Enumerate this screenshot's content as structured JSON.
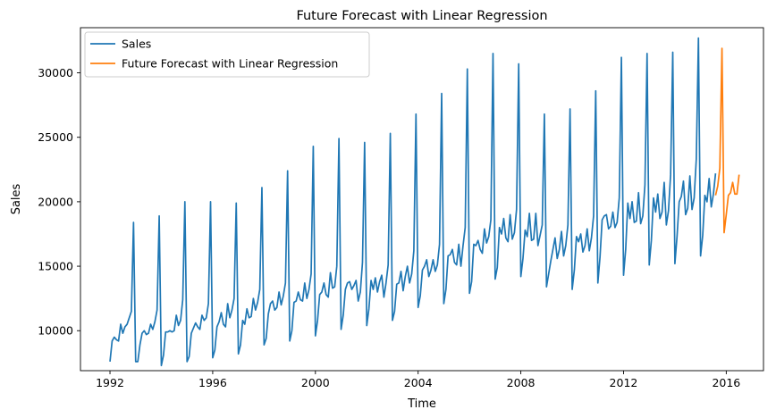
{
  "chart_data": {
    "type": "line",
    "title": "Future Forecast with Linear Regression",
    "xlabel": "Time",
    "ylabel": "Sales",
    "xlim": [
      1990.85,
      2017.45
    ],
    "ylim": [
      6900,
      33500
    ],
    "x_ticks": [
      1992,
      1996,
      2000,
      2004,
      2008,
      2012,
      2016
    ],
    "y_ticks": [
      10000,
      15000,
      20000,
      25000,
      30000
    ],
    "legend_position": "upper-left",
    "grid": false,
    "series": [
      {
        "name": "Sales",
        "color": "#1f77b4",
        "start_year": 1992,
        "values": [
          7600,
          9200,
          9500,
          9300,
          9200,
          10500,
          9800,
          10300,
          10500,
          11000,
          11500,
          18400,
          7600,
          7600,
          8900,
          9800,
          10000,
          9700,
          9800,
          10500,
          10100,
          10700,
          11600,
          18900,
          7300,
          8100,
          9900,
          9900,
          10000,
          9900,
          10000,
          11200,
          10400,
          10800,
          12400,
          20000,
          7600,
          8000,
          9800,
          10200,
          10600,
          10300,
          10100,
          11200,
          10800,
          11000,
          12100,
          20000,
          7900,
          8500,
          10300,
          10700,
          11400,
          10500,
          10300,
          12100,
          11000,
          11600,
          12500,
          19900,
          8200,
          8900,
          10800,
          10500,
          11700,
          11000,
          11100,
          12500,
          11600,
          12200,
          13200,
          21100,
          8900,
          9400,
          11300,
          12100,
          12300,
          11600,
          11800,
          13000,
          12000,
          12700,
          13700,
          22400,
          9200,
          10000,
          12200,
          12300,
          13000,
          12400,
          12300,
          13700,
          12500,
          13200,
          14400,
          24300,
          9600,
          10800,
          12800,
          13000,
          13700,
          12800,
          12600,
          14500,
          13300,
          13400,
          15000,
          24900,
          10100,
          11200,
          13200,
          13700,
          13800,
          13200,
          13500,
          13900,
          12300,
          13000,
          15300,
          24600,
          10400,
          11700,
          13900,
          13200,
          14100,
          13000,
          13800,
          14300,
          12600,
          13700,
          15100,
          25300,
          10800,
          11500,
          13600,
          13700,
          14600,
          13100,
          14200,
          15000,
          13700,
          14400,
          16200,
          26800,
          11800,
          12700,
          14700,
          15000,
          15500,
          14200,
          14700,
          15500,
          14600,
          15100,
          16700,
          28400,
          12100,
          13200,
          15800,
          15900,
          16300,
          15300,
          15100,
          16700,
          15000,
          16600,
          18000,
          30300,
          12900,
          13800,
          16700,
          16600,
          17000,
          16300,
          16000,
          17900,
          16800,
          17300,
          18600,
          31500,
          14000,
          14900,
          18000,
          17500,
          18700,
          17200,
          16900,
          19000,
          17100,
          17600,
          19400,
          30700,
          14200,
          15600,
          17800,
          17300,
          19100,
          17000,
          17100,
          19100,
          16600,
          17400,
          18200,
          26800,
          13400,
          14400,
          15400,
          16300,
          17200,
          15600,
          16300,
          17700,
          15800,
          16600,
          18200,
          27200,
          13200,
          14700,
          17300,
          16900,
          17500,
          16100,
          16600,
          17900,
          16200,
          17200,
          18900,
          28600,
          13700,
          15700,
          18600,
          18900,
          19000,
          17900,
          18100,
          19200,
          18000,
          18400,
          20300,
          31200,
          14300,
          16300,
          19900,
          18700,
          20000,
          18400,
          18500,
          20700,
          18300,
          18900,
          21300,
          31500,
          15100,
          17000,
          20300,
          19200,
          20600,
          18700,
          19200,
          21500,
          18200,
          19300,
          22100,
          31600,
          15200,
          17300,
          20000,
          20400,
          21600,
          19000,
          19500,
          22000,
          19400,
          20300,
          23300,
          32700,
          15800,
          17400,
          20500,
          20000,
          21800,
          19600,
          20600,
          22200
        ]
      },
      {
        "name": "Future Forecast with Linear Regression",
        "color": "#ff7f0e",
        "start_year": 2015.5833,
        "values": [
          20500,
          21200,
          22600,
          31900,
          17600,
          19000,
          20500,
          20700,
          21500,
          20600,
          20600,
          22100
        ]
      }
    ]
  }
}
